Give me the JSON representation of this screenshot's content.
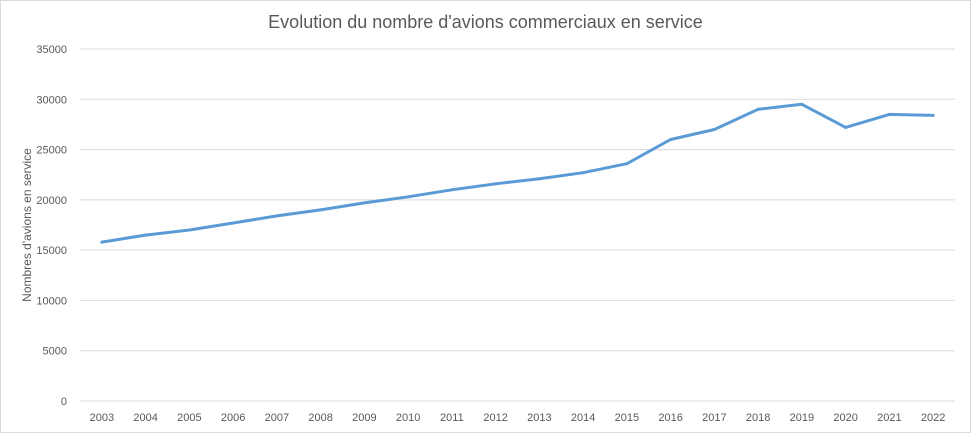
{
  "chart_data": {
    "type": "line",
    "title": "Evolution du nombre d'avions commerciaux en service",
    "xlabel": "",
    "ylabel": "Nombres d'avions en service",
    "categories": [
      "2003",
      "2004",
      "2005",
      "2006",
      "2007",
      "2008",
      "2009",
      "2010",
      "2011",
      "2012",
      "2013",
      "2014",
      "2015",
      "2016",
      "2017",
      "2018",
      "2019",
      "2020",
      "2021",
      "2022"
    ],
    "series": [
      {
        "values": [
          15800,
          16500,
          17000,
          17700,
          18400,
          19000,
          19700,
          20300,
          21000,
          21600,
          22100,
          22700,
          23600,
          26000,
          27000,
          29000,
          29500,
          27200,
          28500,
          28400
        ],
        "color": "#5b9bd5"
      }
    ],
    "ylim": [
      0,
      35000
    ],
    "yticks": [
      "0",
      "5000",
      "10000",
      "15000",
      "20000",
      "25000",
      "30000",
      "35000"
    ],
    "grid": true,
    "legend": "none"
  }
}
